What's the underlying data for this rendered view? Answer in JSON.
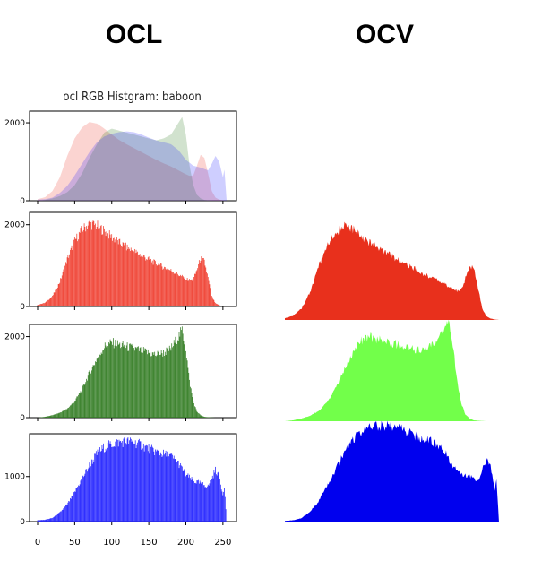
{
  "headings": {
    "left": "OCL",
    "right": "OCV"
  },
  "colors": {
    "red": "#ef3b2c",
    "green": "#2f7a1f",
    "blue": "#1f1fff",
    "ocv_red": "#e8301c",
    "ocv_green": "#72ff4a",
    "ocv_blue": "#0000ee"
  },
  "chart_data": [
    {
      "type": "area",
      "title": "ocl RGB Histgram: baboon",
      "xlim": [
        0,
        255
      ],
      "ylim": [
        0,
        2300
      ],
      "yticks": [
        "0",
        "2000"
      ],
      "series": [
        {
          "name": "",
          "color": "#ef3b2c",
          "x": [
            0,
            10,
            20,
            30,
            40,
            50,
            60,
            70,
            80,
            90,
            100,
            110,
            120,
            130,
            140,
            150,
            160,
            170,
            180,
            190,
            200,
            205,
            210,
            215,
            220,
            225,
            230,
            235,
            240,
            245,
            250,
            255
          ],
          "y": [
            40,
            90,
            250,
            600,
            1150,
            1600,
            1880,
            2020,
            1980,
            1850,
            1700,
            1560,
            1450,
            1350,
            1250,
            1150,
            1050,
            960,
            880,
            780,
            680,
            640,
            650,
            900,
            1180,
            1100,
            700,
            250,
            80,
            30,
            10,
            0
          ]
        },
        {
          "name": "",
          "color": "#2f7a1f",
          "x": [
            0,
            10,
            20,
            30,
            40,
            50,
            60,
            70,
            80,
            90,
            100,
            110,
            120,
            130,
            140,
            150,
            160,
            170,
            180,
            190,
            195,
            200,
            205,
            210,
            215,
            220,
            225,
            230,
            235,
            240,
            245,
            250,
            255
          ],
          "y": [
            0,
            20,
            60,
            120,
            220,
            400,
            700,
            1100,
            1450,
            1750,
            1850,
            1800,
            1750,
            1700,
            1650,
            1600,
            1550,
            1600,
            1700,
            2000,
            2150,
            1700,
            900,
            400,
            150,
            60,
            20,
            10,
            5,
            0,
            0,
            0,
            0
          ]
        },
        {
          "name": "",
          "color": "#1f1fff",
          "x": [
            0,
            10,
            20,
            30,
            40,
            50,
            60,
            70,
            80,
            90,
            100,
            110,
            120,
            130,
            140,
            150,
            160,
            170,
            180,
            190,
            200,
            210,
            220,
            230,
            235,
            240,
            245,
            250,
            252,
            255
          ],
          "y": [
            30,
            40,
            80,
            200,
            380,
            650,
            950,
            1250,
            1500,
            1650,
            1720,
            1760,
            1780,
            1760,
            1700,
            1620,
            1550,
            1500,
            1450,
            1300,
            1050,
            900,
            850,
            780,
            950,
            1150,
            1000,
            600,
            800,
            0
          ]
        }
      ]
    },
    {
      "type": "bar",
      "xlim": [
        0,
        255
      ],
      "ylim": [
        0,
        2300
      ],
      "yticks": [
        "0",
        "2000"
      ],
      "series": [
        {
          "name": "",
          "color": "#ef3b2c",
          "x": [
            0,
            10,
            20,
            30,
            40,
            50,
            60,
            70,
            80,
            90,
            100,
            110,
            120,
            130,
            140,
            150,
            160,
            170,
            180,
            190,
            200,
            205,
            210,
            215,
            220,
            225,
            230,
            235,
            240,
            245,
            250,
            255
          ],
          "y": [
            40,
            90,
            250,
            600,
            1150,
            1600,
            1880,
            2020,
            1980,
            1850,
            1700,
            1560,
            1450,
            1350,
            1250,
            1150,
            1050,
            960,
            880,
            780,
            680,
            640,
            650,
            900,
            1180,
            1100,
            700,
            250,
            80,
            30,
            10,
            0
          ]
        }
      ]
    },
    {
      "type": "bar",
      "xlim": [
        0,
        255
      ],
      "ylim": [
        0,
        2300
      ],
      "yticks": [
        "0",
        "2000"
      ],
      "series": [
        {
          "name": "",
          "color": "#2f7a1f",
          "x": [
            0,
            10,
            20,
            30,
            40,
            50,
            60,
            70,
            80,
            90,
            100,
            110,
            120,
            130,
            140,
            150,
            160,
            170,
            180,
            190,
            195,
            200,
            205,
            210,
            215,
            220,
            225,
            230,
            235,
            240,
            245,
            250,
            255
          ],
          "y": [
            0,
            20,
            60,
            120,
            220,
            400,
            700,
            1100,
            1450,
            1750,
            1850,
            1800,
            1750,
            1700,
            1650,
            1600,
            1550,
            1600,
            1700,
            2000,
            2150,
            1700,
            900,
            400,
            150,
            60,
            20,
            10,
            5,
            0,
            0,
            0,
            0
          ]
        }
      ]
    },
    {
      "type": "bar",
      "xlim": [
        0,
        255
      ],
      "ylim": [
        0,
        1950
      ],
      "yticks": [
        "0",
        "1000"
      ],
      "xticks": [
        "0",
        "50",
        "100",
        "150",
        "200",
        "250"
      ],
      "series": [
        {
          "name": "",
          "color": "#1f1fff",
          "x": [
            0,
            10,
            20,
            30,
            40,
            50,
            60,
            70,
            80,
            90,
            100,
            110,
            120,
            130,
            140,
            150,
            160,
            170,
            180,
            190,
            200,
            210,
            220,
            230,
            235,
            240,
            245,
            250,
            252,
            255
          ],
          "y": [
            30,
            40,
            80,
            200,
            380,
            650,
            950,
            1250,
            1500,
            1650,
            1720,
            1760,
            1780,
            1760,
            1700,
            1620,
            1550,
            1500,
            1450,
            1300,
            1050,
            900,
            850,
            780,
            950,
            1150,
            1000,
            600,
            800,
            0
          ]
        }
      ]
    },
    {
      "type": "area",
      "xlim": [
        0,
        255
      ],
      "ylim": [
        0,
        2200
      ],
      "series": [
        {
          "name": "",
          "color": "#e8301c",
          "x": [
            0,
            10,
            20,
            30,
            40,
            50,
            60,
            70,
            80,
            90,
            100,
            110,
            120,
            130,
            140,
            150,
            160,
            170,
            180,
            190,
            200,
            205,
            210,
            215,
            220,
            225,
            230,
            235,
            240,
            245,
            250,
            255
          ],
          "y": [
            40,
            90,
            250,
            600,
            1150,
            1600,
            1880,
            2020,
            1980,
            1850,
            1700,
            1560,
            1450,
            1350,
            1250,
            1150,
            1050,
            960,
            880,
            780,
            680,
            640,
            650,
            900,
            1180,
            1100,
            700,
            250,
            80,
            30,
            10,
            0
          ]
        }
      ]
    },
    {
      "type": "area",
      "xlim": [
        0,
        255
      ],
      "ylim": [
        0,
        2200
      ],
      "series": [
        {
          "name": "",
          "color": "#72ff4a",
          "x": [
            0,
            10,
            20,
            30,
            40,
            50,
            60,
            70,
            80,
            90,
            100,
            110,
            120,
            130,
            140,
            150,
            160,
            170,
            180,
            190,
            195,
            200,
            205,
            210,
            215,
            220,
            225,
            230,
            235,
            240,
            245,
            250,
            255
          ],
          "y": [
            0,
            20,
            60,
            120,
            220,
            400,
            700,
            1100,
            1450,
            1750,
            1850,
            1800,
            1750,
            1700,
            1650,
            1600,
            1550,
            1600,
            1700,
            2000,
            2150,
            1700,
            900,
            400,
            150,
            60,
            20,
            10,
            5,
            0,
            0,
            0,
            0
          ]
        }
      ]
    },
    {
      "type": "area",
      "xlim": [
        0,
        255
      ],
      "ylim": [
        0,
        1850
      ],
      "series": [
        {
          "name": "",
          "color": "#0000ee",
          "x": [
            0,
            10,
            20,
            30,
            40,
            50,
            60,
            70,
            80,
            90,
            100,
            110,
            120,
            130,
            140,
            150,
            160,
            170,
            180,
            190,
            200,
            210,
            220,
            230,
            235,
            240,
            245,
            250,
            252,
            255
          ],
          "y": [
            30,
            40,
            80,
            200,
            380,
            650,
            950,
            1250,
            1500,
            1650,
            1720,
            1760,
            1780,
            1760,
            1700,
            1620,
            1550,
            1500,
            1450,
            1300,
            1050,
            900,
            850,
            780,
            950,
            1150,
            1000,
            600,
            800,
            0
          ]
        }
      ]
    }
  ]
}
